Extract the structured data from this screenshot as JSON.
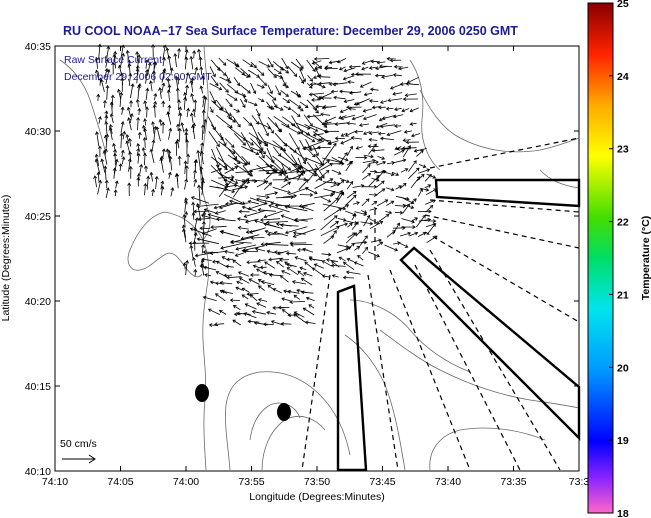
{
  "title": "RU COOL  NOAA−17  Sea Surface Temperature:  December 29, 2006 0250 GMT",
  "annotation_line1": "Raw Surface Current",
  "annotation_line2": "December 29, 2006 02:00 GMT",
  "scale_label": "50 cm/s",
  "xlabel": "Longitude (Degrees:Minutes)",
  "ylabel": "Latitude (Degrees:Minutes)",
  "x_ticks": [
    "74:10",
    "74:05",
    "74:00",
    "73:55",
    "73:50",
    "73:45",
    "73:40",
    "73:35",
    "73:3"
  ],
  "y_ticks": [
    "40:35",
    "40:30",
    "40:25",
    "40:20",
    "40:15",
    "40:10"
  ],
  "colorbar": {
    "label": "Temperature (°C)",
    "ticks": [
      "25",
      "24",
      "23",
      "22",
      "21",
      "20",
      "19",
      "18"
    ],
    "range": [
      18,
      25
    ]
  }
}
